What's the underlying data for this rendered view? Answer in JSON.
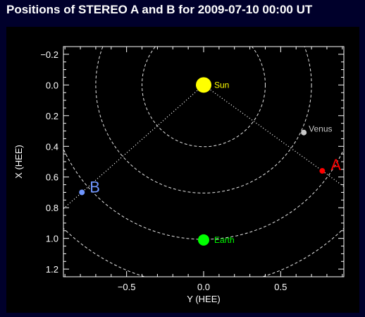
{
  "page": {
    "title": "Positions of STEREO A and B for 2009-07-10 00:00 UT"
  },
  "colors": {
    "page_background": "#00002b",
    "plot_background": "#000000",
    "axes": "#ffffff",
    "orbits": "#ffffff",
    "sun": "#ffff00",
    "earth": "#00ff00",
    "venus": "#c8c8c8",
    "stereo_a": "#ff0000",
    "stereo_b": "#6f96ff"
  },
  "chart_data": {
    "type": "scatter",
    "title": "Positions of STEREO A and B for 2009-07-10 00:00 UT",
    "xlabel": "Y (HEE)",
    "ylabel": "X (HEE)",
    "xlim": [
      -0.91,
      0.91
    ],
    "ylim": [
      1.25,
      -0.25
    ],
    "y_axis_inverted": true,
    "xticks": [
      -0.5,
      0.0,
      0.5
    ],
    "xtick_labels": [
      "−0.5",
      "0.0",
      "0.5"
    ],
    "yticks": [
      -0.2,
      0.0,
      0.2,
      0.4,
      0.6,
      0.8,
      1.0,
      1.2
    ],
    "ytick_labels": [
      "−0.2",
      "0.0",
      "0.2",
      "0.4",
      "0.6",
      "0.8",
      "1.0",
      "1.2"
    ],
    "grid": false,
    "bodies": [
      {
        "id": "sun",
        "label": "Sun",
        "y": 0.0,
        "x": 0.0,
        "color": "#ffff00"
      },
      {
        "id": "venus",
        "label": "Venus",
        "y": 0.65,
        "x": 0.31,
        "color": "#c8c8c8"
      },
      {
        "id": "stereo-a",
        "label": "A",
        "y": 0.77,
        "x": 0.56,
        "color": "#ff0000"
      },
      {
        "id": "stereo-b",
        "label": "B",
        "y": -0.79,
        "x": 0.7,
        "color": "#6f96ff"
      },
      {
        "id": "earth",
        "label": "Earth",
        "y": 0.0,
        "x": 1.01,
        "color": "#00ff00"
      }
    ],
    "orbit_circles_au": [
      0.4,
      0.7,
      1.0,
      1.3
    ],
    "sight_lines": [
      "sun-to-stereo-a",
      "sun-to-stereo-b"
    ]
  }
}
